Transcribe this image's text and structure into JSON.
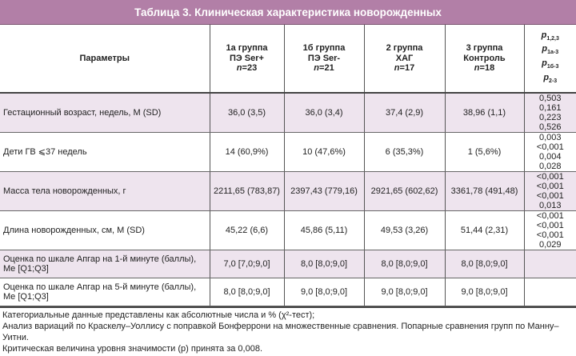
{
  "title": "Таблица 3. Клиническая характеристика новорожденных",
  "headers": {
    "param": "Параметры",
    "groups": [
      {
        "name": "1а группа",
        "sub": "ПЭ Ser+",
        "n": "n=23"
      },
      {
        "name": "1б группа",
        "sub": "ПЭ Ser-",
        "n": "n=21"
      },
      {
        "name": "2 группа",
        "sub": "ХАГ",
        "n": "n=17"
      },
      {
        "name": "3 группа",
        "sub": "Контроль",
        "n": "n=18"
      }
    ],
    "p": [
      "p1,2,3",
      "p1а-3",
      "p1б-3",
      "p2-3"
    ]
  },
  "rows": [
    {
      "param": "Гестационный возраст, недель, M (SD)",
      "v": [
        "36,0 (3,5)",
        "36,0 (3,4)",
        "37,4 (2,9)",
        "38,96 (1,1)"
      ],
      "p": [
        "0,503",
        "0,161",
        "0,223",
        "0,526"
      ]
    },
    {
      "param": "Дети ГВ ⩽37 недель",
      "v": [
        "14 (60,9%)",
        "10 (47,6%)",
        "6 (35,3%)",
        "1 (5,6%)"
      ],
      "p": [
        "0,003",
        "<0,001",
        "0,004",
        "0,028"
      ]
    },
    {
      "param": "Масса тела новорожденных, г",
      "v": [
        "2211,65 (783,87)",
        "2397,43 (779,16)",
        "2921,65 (602,62)",
        "3361,78 (491,48)"
      ],
      "p": [
        "<0,001",
        "<0,001",
        "<0,001",
        "0,013"
      ]
    },
    {
      "param": "Длина новорожденных, см, M (SD)",
      "v": [
        "45,22 (6,6)",
        "45,86 (5,11)",
        "49,53 (3,26)",
        "51,44 (2,31)"
      ],
      "p": [
        "<0,001",
        "<0,001",
        "<0,001",
        "0,029"
      ]
    },
    {
      "param": "Оценка по шкале Апгар на 1-й минуте (баллы), Me [Q1;Q3]",
      "v": [
        "7,0 [7,0;9,0]",
        "8,0 [8,0;9,0]",
        "8,0 [8,0;9,0]",
        "8,0 [8,0;9,0]"
      ],
      "p": []
    },
    {
      "param": "Оценка по шкале Апгар на 5-й минуте (баллы), Me [Q1;Q3]",
      "v": [
        "8,0 [8,0;9,0]",
        "9,0 [8,0;9,0]",
        "9,0 [8,0;9,0]",
        "9,0 [8,0;9,0]"
      ],
      "p": []
    }
  ],
  "footnotes": [
    "Категориальные данные представлены как абсолютные числа и % (χ²-тест);",
    "Анализ вариаций по Краскелу–Уоллису с поправкой Бонферрони на множественные сравнения. Попарные сравнения групп по Манну–Уитни.",
    "Критическая величина уровня значимости (p) принята за 0,008."
  ]
}
